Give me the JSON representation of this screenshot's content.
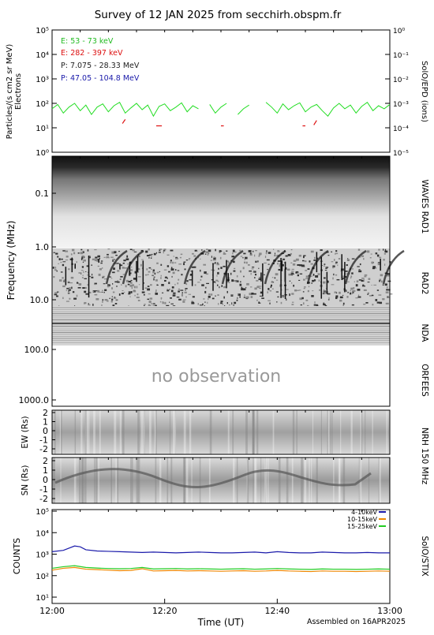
{
  "title": "Survey of 12 JAN 2025 from secchirh.obspm.fr",
  "footer": "Assembled on 16APR2025",
  "colors": {
    "e1": "#22dd22",
    "e2": "#dd1111",
    "p1": "#222222",
    "p2": "#1a1aaa",
    "stx1": "#1a1aaa",
    "stx2": "#ee8800",
    "stx3": "#22cc22"
  },
  "chart_data": [
    {
      "type": "line",
      "panel": "SolO/EPD",
      "ylabel": "Particles/(s cm2 sr MeV)",
      "ylabel2": "Electrons",
      "right_label": "SolO/EPD (ions)",
      "ylim": [
        1,
        100000
      ],
      "y2lim": [
        1e-05,
        1
      ],
      "yscale": "log",
      "y_ticks": [
        "10⁰",
        "10¹",
        "10²",
        "10³",
        "10⁴",
        "10⁵"
      ],
      "y2_ticks": [
        "10⁻⁵",
        "10⁻⁴",
        "10⁻³",
        "10⁻²",
        "10⁻¹",
        "10⁰"
      ],
      "legend": [
        "E: 53 - 73 keV",
        "E: 282 - 397 keV",
        "P: 7.075 - 28.33 MeV",
        "P: 47.05 - 104.8 MeV"
      ],
      "series": [
        {
          "name": "E: 53 - 73 keV",
          "x": [
            0,
            1,
            2,
            3,
            4,
            5,
            6,
            7,
            8,
            9,
            10,
            11,
            12,
            13,
            14,
            15,
            16,
            17,
            18,
            19,
            20,
            21,
            22,
            23,
            24,
            25,
            26,
            27,
            28,
            29,
            30,
            31,
            32,
            33,
            34,
            35,
            36,
            37,
            38,
            39,
            40,
            41,
            42,
            43,
            44,
            45,
            46,
            47,
            48,
            49,
            50,
            51,
            52,
            53,
            54,
            55,
            56,
            57,
            58,
            59,
            60
          ],
          "y": [
            60,
            90,
            40,
            70,
            100,
            50,
            85,
            35,
            70,
            95,
            45,
            80,
            110,
            40,
            65,
            100,
            55,
            85,
            30,
            75,
            95,
            50,
            70,
            105,
            45,
            80,
            60,
            null,
            90,
            40,
            70,
            100,
            null,
            35,
            60,
            85,
            null,
            null,
            110,
            70,
            40,
            95,
            55,
            80,
            105,
            45,
            70,
            90,
            50,
            30,
            65,
            100,
            60,
            85,
            40,
            75,
            110,
            50,
            80,
            60,
            90
          ]
        },
        {
          "name": "E: 282 - 397 keV",
          "x": [
            12.5,
            13,
            18.5,
            19.5,
            30,
            30.5,
            44.5,
            45,
            46.5,
            47
          ],
          "y": [
            15,
            22,
            12,
            12,
            12,
            12,
            12,
            12,
            13,
            20
          ]
        }
      ]
    },
    {
      "type": "heatmap",
      "panel": "WAVES RAD1",
      "ylabel": "Frequency (MHz)",
      "y_ticks": [
        "0.1",
        "1.0",
        "10.0",
        "100.0",
        "1000.0"
      ],
      "right_labels": [
        "WAVES RAD1",
        "RAD2",
        "NDA",
        "ORFEES"
      ],
      "annotation": "no observation"
    },
    {
      "type": "heatmap",
      "panel": "NRH 150 MHz",
      "ylabel_ew": "EW (Rs)",
      "ylabel_sn": "SN (Rs)",
      "right_label": "NRH 150 MHz",
      "ew_ticks": [
        "2",
        "1",
        "0",
        "-1",
        "-2"
      ],
      "sn_ticks": [
        "2",
        "1",
        "0",
        "-1",
        "-2"
      ]
    },
    {
      "type": "line",
      "panel": "SolO/STIX",
      "ylabel": "COUNTS",
      "right_label": "SoIO/STIX",
      "xlabel": "Time (UT)",
      "x_ticks": [
        "12:00",
        "12:20",
        "12:40",
        "13:00"
      ],
      "ylim": [
        10,
        100000
      ],
      "yscale": "log",
      "y_ticks": [
        "10¹",
        "10²",
        "10³",
        "10⁴",
        "10⁵"
      ],
      "legend": [
        "4-10keV",
        "10-15keV",
        "15-25keV"
      ],
      "series": [
        {
          "name": "4-10keV",
          "x": [
            0,
            2,
            4,
            5,
            6,
            8,
            10,
            12,
            14,
            16,
            18,
            20,
            22,
            24,
            26,
            28,
            30,
            32,
            34,
            36,
            38,
            40,
            42,
            44,
            46,
            48,
            50,
            52,
            54,
            56,
            58,
            60
          ],
          "y": [
            1300,
            1500,
            2400,
            2200,
            1600,
            1400,
            1350,
            1300,
            1250,
            1200,
            1250,
            1200,
            1150,
            1200,
            1250,
            1200,
            1150,
            1150,
            1200,
            1250,
            1150,
            1300,
            1200,
            1150,
            1150,
            1250,
            1200,
            1150,
            1150,
            1200,
            1150,
            1150
          ]
        },
        {
          "name": "10-15keV",
          "x": [
            0,
            2,
            4,
            6,
            8,
            10,
            12,
            14,
            16,
            18,
            20,
            22,
            24,
            26,
            28,
            30,
            32,
            34,
            36,
            38,
            40,
            42,
            44,
            46,
            48,
            50,
            52,
            54,
            56,
            58,
            60
          ],
          "y": [
            180,
            220,
            240,
            200,
            190,
            180,
            170,
            175,
            210,
            165,
            170,
            175,
            165,
            170,
            165,
            160,
            165,
            170,
            160,
            165,
            175,
            165,
            160,
            155,
            165,
            160,
            160,
            155,
            160,
            165,
            160
          ]
        },
        {
          "name": "15-25keV",
          "x": [
            0,
            2,
            4,
            6,
            8,
            10,
            12,
            14,
            16,
            18,
            20,
            22,
            24,
            26,
            28,
            30,
            32,
            34,
            36,
            38,
            40,
            42,
            44,
            46,
            48,
            50,
            52,
            54,
            56,
            58,
            60
          ],
          "y": [
            220,
            260,
            290,
            240,
            225,
            215,
            210,
            215,
            240,
            205,
            210,
            215,
            205,
            210,
            205,
            200,
            205,
            210,
            200,
            205,
            215,
            205,
            200,
            195,
            205,
            200,
            200,
            195,
            200,
            205,
            200
          ]
        }
      ]
    }
  ]
}
